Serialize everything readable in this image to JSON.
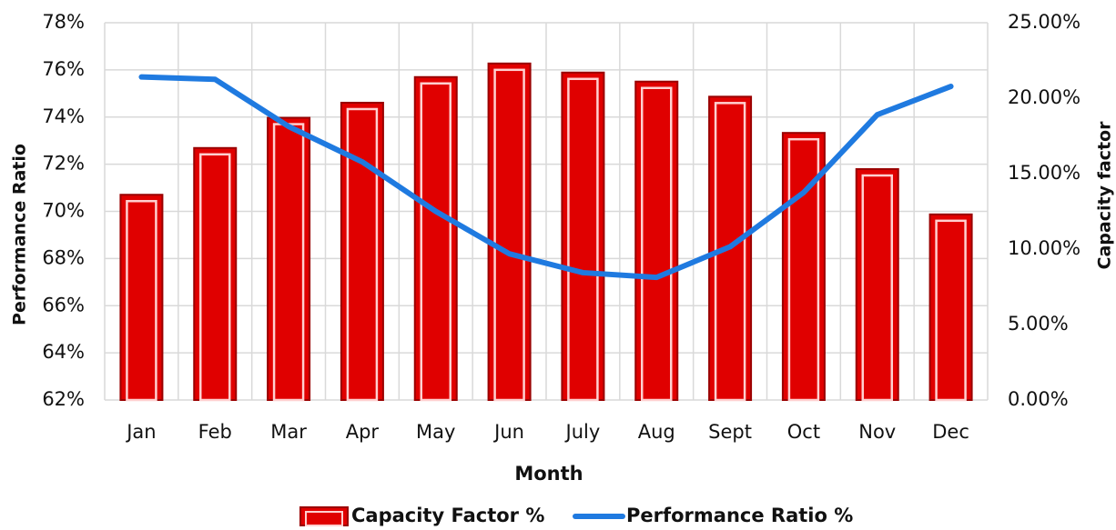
{
  "chart_data": {
    "type": "bar",
    "xlabel": "Month",
    "ylabel": "Performance Ratio",
    "y2label": "Capacity factor",
    "categories": [
      "Jan",
      "Feb",
      "Mar",
      "Apr",
      "May",
      "Jun",
      "July",
      "Aug",
      "Sept",
      "Oct",
      "Nov",
      "Dec"
    ],
    "series": [
      {
        "name": "Capacity Factor %",
        "type": "bar",
        "axis": "y2",
        "color": "#e00000",
        "values": [
          13.6,
          16.7,
          18.7,
          19.7,
          21.4,
          22.3,
          21.7,
          21.1,
          20.1,
          17.7,
          15.3,
          12.3
        ]
      },
      {
        "name": "Performance Ratio %",
        "type": "line",
        "axis": "y",
        "color": "#1f7ae0",
        "values": [
          75.7,
          75.6,
          73.6,
          72.1,
          70.0,
          68.2,
          67.4,
          67.2,
          68.5,
          70.8,
          74.1,
          75.3
        ]
      }
    ],
    "ylim": [
      62,
      78
    ],
    "yticks": [
      {
        "value": 62,
        "label": "62%"
      },
      {
        "value": 64,
        "label": "64%"
      },
      {
        "value": 66,
        "label": "66%"
      },
      {
        "value": 68,
        "label": "68%"
      },
      {
        "value": 70,
        "label": "70%"
      },
      {
        "value": 72,
        "label": "72%"
      },
      {
        "value": 74,
        "label": "74%"
      },
      {
        "value": 76,
        "label": "76%"
      },
      {
        "value": 78,
        "label": "78%"
      }
    ],
    "y2lim": [
      0,
      25
    ],
    "y2ticks": [
      {
        "value": 0,
        "label": "0.00%"
      },
      {
        "value": 5,
        "label": "5.00%"
      },
      {
        "value": 10,
        "label": "10.00%"
      },
      {
        "value": 15,
        "label": "15.00%"
      },
      {
        "value": 20,
        "label": "20.00%"
      },
      {
        "value": 25,
        "label": "25.00%"
      }
    ],
    "grid": true,
    "legend": "bottom"
  }
}
